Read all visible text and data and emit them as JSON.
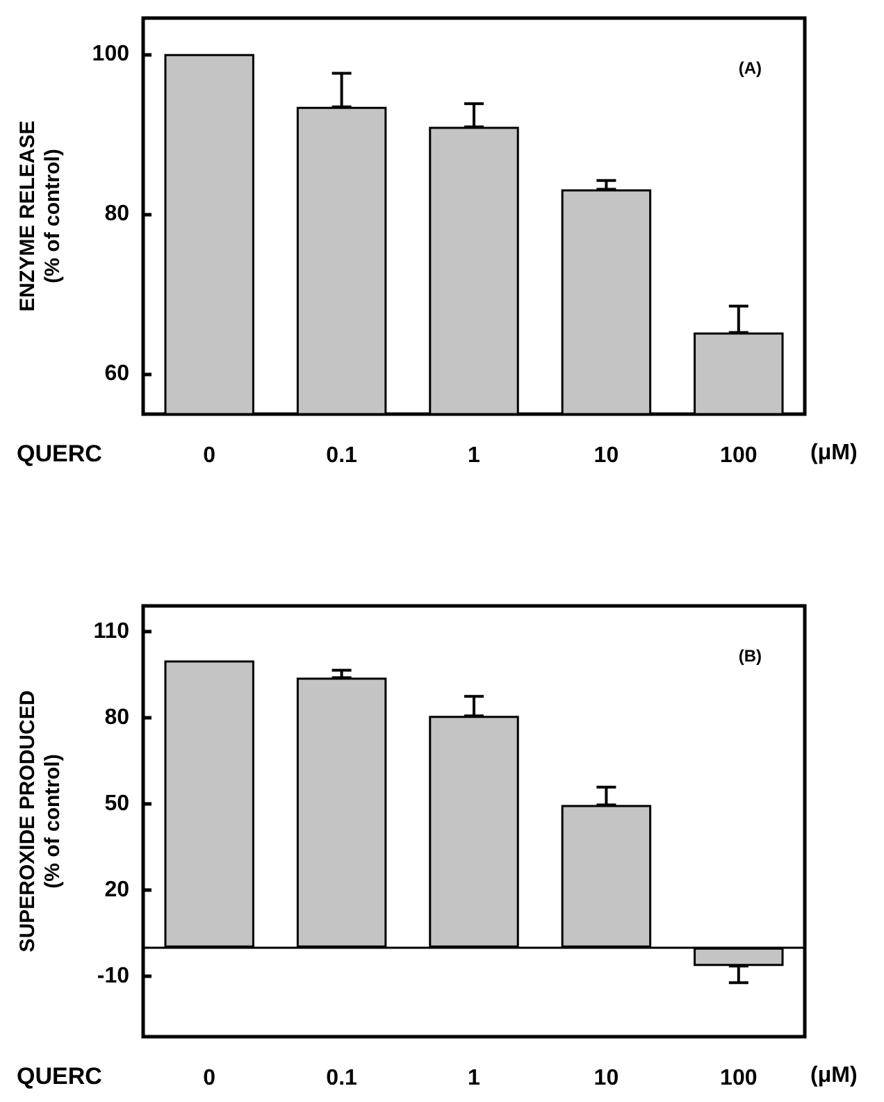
{
  "chart_data": [
    {
      "type": "bar",
      "ylabel": "ENZYME RELEASE\n(% of control)",
      "xlabel": "QUERC",
      "annotations": [
        "(A)",
        "(μM)"
      ],
      "categories": [
        "0",
        "0.1",
        "1",
        "10",
        "100"
      ],
      "values": [
        100,
        93.4,
        90.9,
        83.1,
        65.2
      ],
      "color": "#c4c4c4",
      "errors": [
        null,
        [
          93.4,
          97.6
        ],
        [
          90.9,
          93.8
        ],
        [
          83.1,
          84.2
        ],
        [
          65.2,
          68.5
        ]
      ],
      "ylim": [
        55,
        104.5
      ],
      "yticks": [
        60,
        80,
        100
      ],
      "grid": false
    },
    {
      "type": "bar",
      "ylabel": "SUPEROXIDE PRODUCED\n(% of control)",
      "xlabel": "QUERC",
      "annotations": [
        "(B)",
        "(μM)"
      ],
      "categories": [
        "0",
        "0.1",
        "1",
        "10",
        "100"
      ],
      "values": [
        100,
        94,
        80.7,
        49.7,
        -6.4
      ],
      "color": "#c4c4c4",
      "errors": [
        null,
        [
          94,
          96.6
        ],
        [
          80.7,
          87.5
        ],
        [
          49.7,
          55.9
        ],
        [
          -12.2,
          -6.4
        ]
      ],
      "ylim": [
        -31,
        119
      ],
      "yticks": [
        -10,
        20,
        50,
        80,
        110
      ],
      "grid": false,
      "ref_lines": [
        {
          "axis": "y",
          "value": 0
        }
      ]
    }
  ]
}
